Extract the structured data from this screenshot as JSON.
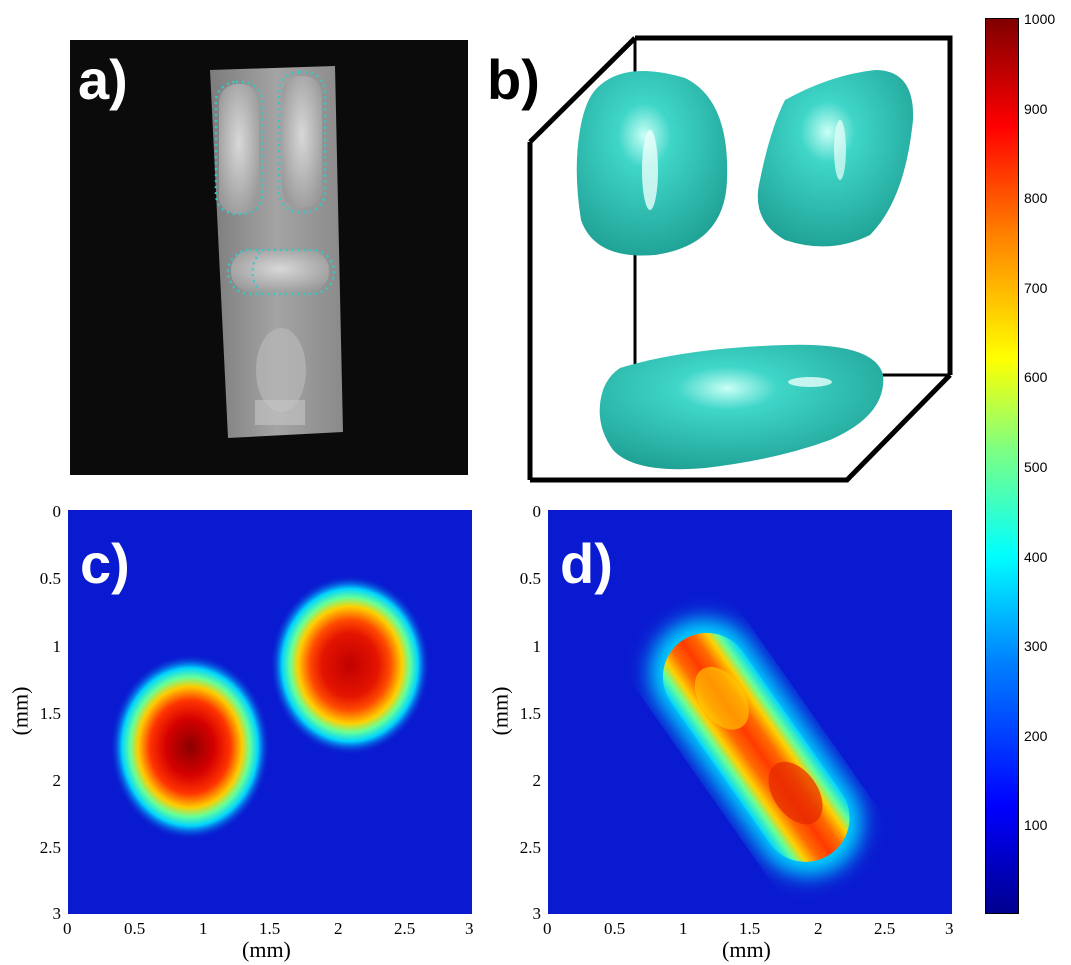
{
  "panels": {
    "a": {
      "label": "a)"
    },
    "b": {
      "label": "b)"
    },
    "c": {
      "label": "c)"
    },
    "d": {
      "label": "d)"
    }
  },
  "axes": {
    "x_label": "(mm)",
    "y_label": "(mm)",
    "x_ticks": [
      "0",
      "0.5",
      "1",
      "1.5",
      "2",
      "2.5",
      "3"
    ],
    "y_ticks": [
      "0",
      "0.5",
      "1",
      "1.5",
      "2",
      "2.5",
      "3"
    ]
  },
  "colorbar": {
    "min": 0,
    "max": 1000,
    "ticks": [
      "1000",
      "900",
      "800",
      "700",
      "600",
      "500",
      "400",
      "300",
      "200",
      "100"
    ]
  },
  "colors": {
    "outline": "#36c9c3",
    "surface": "#2fc4b6",
    "photo_bg": "#0b0b0b"
  }
}
